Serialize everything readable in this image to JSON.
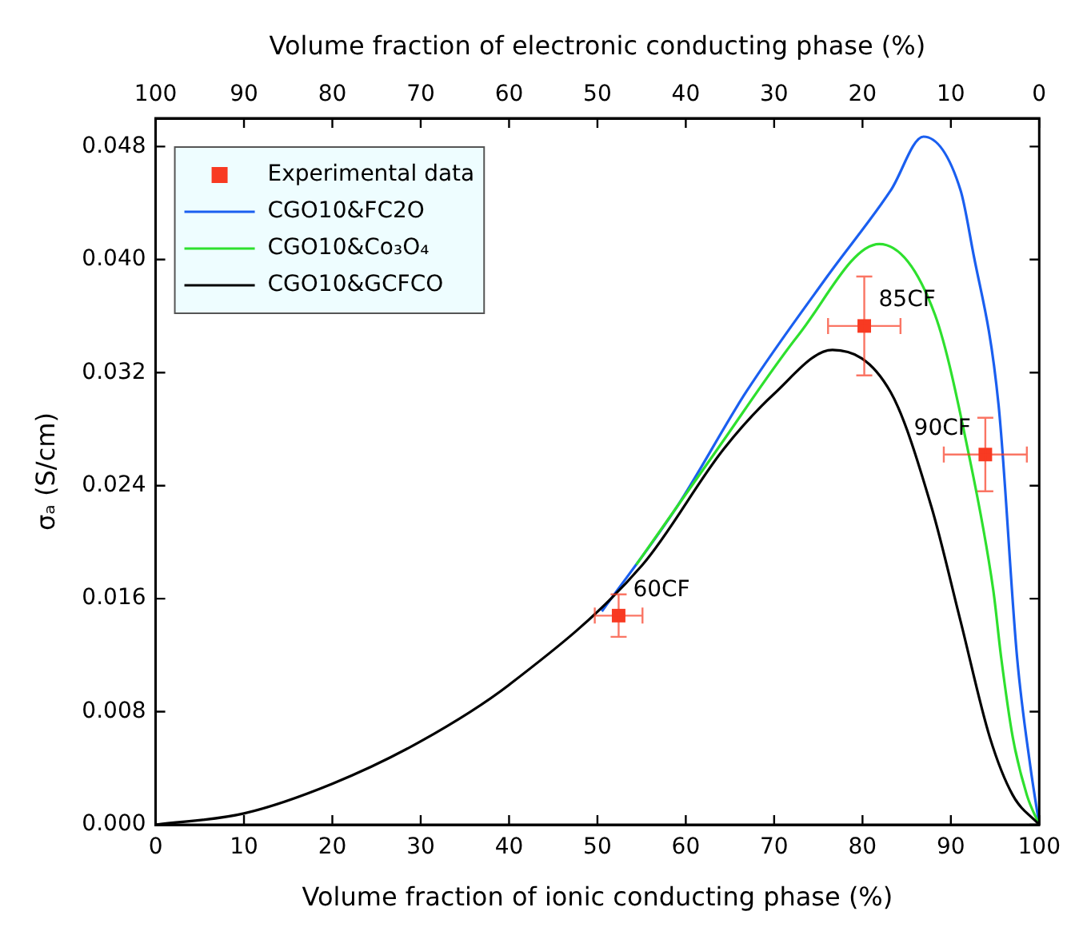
{
  "chart_data": {
    "type": "line",
    "xlabel": "Volume fraction of ionic conducting phase (%)",
    "x2label": "Volume fraction of electronic conducting phase (%)",
    "ylabel": "σₐ (S/cm)",
    "xlim": [
      0,
      100
    ],
    "xticks": [
      0,
      10,
      20,
      30,
      40,
      50,
      60,
      70,
      80,
      90,
      100
    ],
    "x2lim": [
      100,
      0
    ],
    "x2ticks": [
      100,
      90,
      80,
      70,
      60,
      50,
      40,
      30,
      20,
      10,
      0
    ],
    "ylim": [
      0,
      0.05
    ],
    "yticks": [
      {
        "value": 0,
        "label": "0.000"
      },
      0.008,
      0.016,
      0.024,
      0.032,
      {
        "value": 0.04,
        "label": "0.040"
      },
      0.048
    ],
    "grid": false,
    "legend": "top left",
    "series": [
      {
        "name": "Experimental data",
        "type": "scatter",
        "marker": "square",
        "color": "#f83a22",
        "x": [
          52.4,
          80.2,
          93.9
        ],
        "values": [
          0.0148,
          0.0353,
          0.0262
        ],
        "errors": [
          0.0015,
          0.0035,
          0.0026
        ],
        "xerrors": [
          2.7,
          4.1,
          4.7
        ]
      },
      {
        "name": "CGO10&FC2O",
        "color": "#1a5ff0",
        "x": [
          50.5,
          59,
          66.8,
          76,
          83.2,
          86.9,
          91.1,
          92.4,
          95.4,
          97.5,
          99,
          100
        ],
        "values": [
          0.0151,
          0.0225,
          0.0306,
          0.0388,
          0.0449,
          0.0487,
          0.0449,
          0.0409,
          0.0297,
          0.0118,
          0.0041,
          0
        ]
      },
      {
        "name": "CGO10&Co₃O₄",
        "color": "#2ee02e",
        "x": [
          54.4,
          63.6,
          72.8,
          81.9,
          88.2,
          92.1,
          94.8,
          95.7,
          97,
          98.6,
          100
        ],
        "values": [
          0.0184,
          0.0266,
          0.0347,
          0.0411,
          0.0361,
          0.026,
          0.0166,
          0.0118,
          0.0062,
          0.0021,
          0
        ]
      },
      {
        "name": "CGO10&GCFCO",
        "color": "#000000",
        "x": [
          0,
          10,
          20,
          30,
          40,
          55.1,
          64.3,
          70,
          76.6,
          83.2,
          87.8,
          91.1,
          94.4,
          97,
          100
        ],
        "values": [
          0,
          0.0008,
          0.0029,
          0.0059,
          0.0099,
          0.0184,
          0.0266,
          0.0305,
          0.0336,
          0.0306,
          0.0225,
          0.0144,
          0.0062,
          0.0021,
          0
        ]
      }
    ],
    "annotations": [
      {
        "text": "60CF",
        "x": 52.4,
        "y": 0.0148
      },
      {
        "text": "85CF",
        "x": 80.2,
        "y": 0.0353
      },
      {
        "text": "90CF",
        "x": 93.9,
        "y": 0.0262
      }
    ]
  }
}
